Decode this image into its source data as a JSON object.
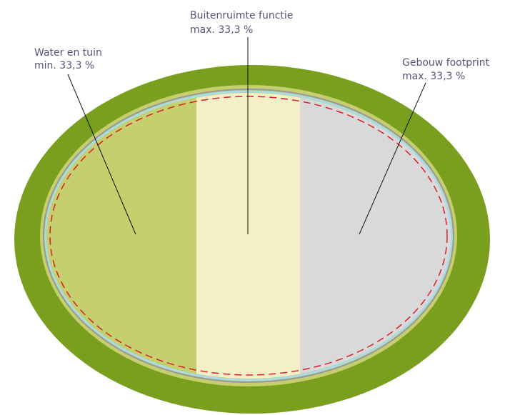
{
  "labels": [
    {
      "name": "Water en tuin",
      "share": "min. 33,3 %"
    },
    {
      "name": "Buitenruimte functie",
      "share": "max. 33,3 %"
    },
    {
      "name": "Gebouw footprint",
      "share": "max. 33,3 %"
    }
  ]
}
